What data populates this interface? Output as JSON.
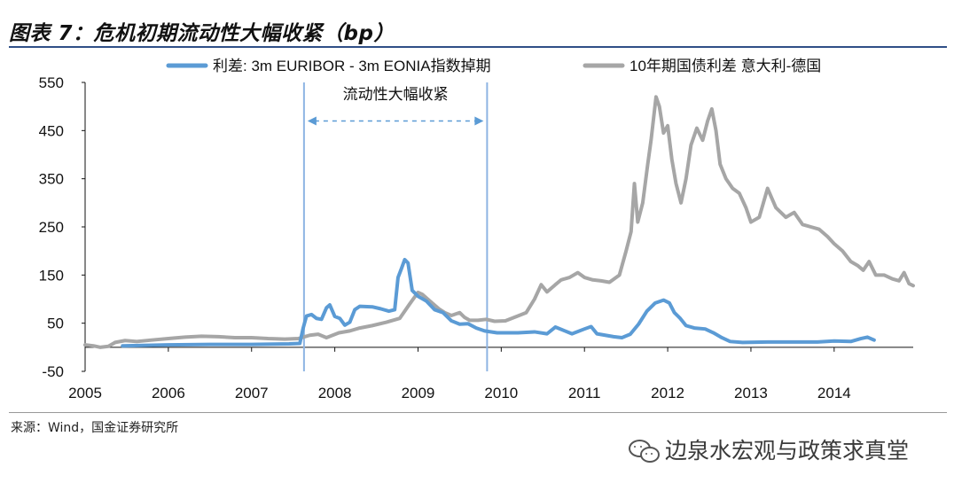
{
  "header": {
    "title": "图表 7：危机初期流动性大幅收紧（bp）"
  },
  "source": {
    "text": "来源：Wind，国金证券研究所"
  },
  "watermark": {
    "text": "边泉水宏观与政策求真堂",
    "icon": "wechat-icon"
  },
  "chart_data": {
    "type": "line",
    "title": "图表 7：危机初期流动性大幅收紧（bp）",
    "xlabel": "",
    "ylabel": "",
    "xlim": [
      2005.0,
      2014.95
    ],
    "ylim": [
      -50,
      550
    ],
    "x_ticks": [
      2005,
      2006,
      2007,
      2008,
      2009,
      2010,
      2011,
      2012,
      2013,
      2014
    ],
    "x_tick_labels": [
      "2005",
      "2006",
      "2007",
      "2008",
      "2009",
      "2010",
      "2011",
      "2012",
      "2013",
      "2014"
    ],
    "y_ticks": [
      -50,
      50,
      150,
      250,
      350,
      450,
      550
    ],
    "y_tick_labels": [
      "-50",
      "50",
      "150",
      "250",
      "350",
      "450",
      "550"
    ],
    "grid": false,
    "legend": "top",
    "series": [
      {
        "name": "利差: 3m EURIBOR - 3m EONIA指数掉期",
        "color": "#5b9bd5",
        "points": [
          [
            2005.45,
            3
          ],
          [
            2006.0,
            5
          ],
          [
            2006.5,
            6
          ],
          [
            2007.0,
            6
          ],
          [
            2007.45,
            7
          ],
          [
            2007.58,
            8
          ],
          [
            2007.62,
            40
          ],
          [
            2007.66,
            65
          ],
          [
            2007.72,
            68
          ],
          [
            2007.78,
            60
          ],
          [
            2007.84,
            58
          ],
          [
            2007.9,
            82
          ],
          [
            2007.94,
            88
          ],
          [
            2008.0,
            64
          ],
          [
            2008.06,
            60
          ],
          [
            2008.12,
            46
          ],
          [
            2008.18,
            52
          ],
          [
            2008.24,
            78
          ],
          [
            2008.3,
            85
          ],
          [
            2008.45,
            84
          ],
          [
            2008.55,
            80
          ],
          [
            2008.65,
            75
          ],
          [
            2008.72,
            78
          ],
          [
            2008.76,
            145
          ],
          [
            2008.8,
            163
          ],
          [
            2008.84,
            182
          ],
          [
            2008.88,
            175
          ],
          [
            2008.93,
            118
          ],
          [
            2009.0,
            106
          ],
          [
            2009.1,
            96
          ],
          [
            2009.2,
            78
          ],
          [
            2009.3,
            72
          ],
          [
            2009.4,
            55
          ],
          [
            2009.5,
            48
          ],
          [
            2009.6,
            49
          ],
          [
            2009.7,
            40
          ],
          [
            2009.8,
            34
          ],
          [
            2009.95,
            30
          ],
          [
            2010.2,
            30
          ],
          [
            2010.4,
            32
          ],
          [
            2010.55,
            28
          ],
          [
            2010.65,
            42
          ],
          [
            2010.75,
            35
          ],
          [
            2010.85,
            28
          ],
          [
            2011.0,
            38
          ],
          [
            2011.08,
            43
          ],
          [
            2011.15,
            28
          ],
          [
            2011.25,
            25
          ],
          [
            2011.35,
            22
          ],
          [
            2011.45,
            20
          ],
          [
            2011.55,
            27
          ],
          [
            2011.65,
            48
          ],
          [
            2011.75,
            75
          ],
          [
            2011.85,
            92
          ],
          [
            2011.95,
            98
          ],
          [
            2012.02,
            92
          ],
          [
            2012.08,
            72
          ],
          [
            2012.15,
            60
          ],
          [
            2012.22,
            45
          ],
          [
            2012.32,
            40
          ],
          [
            2012.45,
            38
          ],
          [
            2012.55,
            30
          ],
          [
            2012.65,
            20
          ],
          [
            2012.75,
            12
          ],
          [
            2012.9,
            10
          ],
          [
            2013.2,
            11
          ],
          [
            2013.5,
            11
          ],
          [
            2013.8,
            11
          ],
          [
            2014.0,
            13
          ],
          [
            2014.2,
            12
          ],
          [
            2014.32,
            18
          ],
          [
            2014.4,
            21
          ],
          [
            2014.48,
            15
          ]
        ]
      },
      {
        "name": "10年期国债利差 意大利-德国",
        "color": "#a6a6a6",
        "points": [
          [
            2005.0,
            5
          ],
          [
            2005.1,
            3
          ],
          [
            2005.18,
            0
          ],
          [
            2005.28,
            2
          ],
          [
            2005.36,
            10
          ],
          [
            2005.48,
            14
          ],
          [
            2005.62,
            12
          ],
          [
            2005.8,
            15
          ],
          [
            2006.0,
            18
          ],
          [
            2006.2,
            21
          ],
          [
            2006.4,
            23
          ],
          [
            2006.6,
            22
          ],
          [
            2006.8,
            20
          ],
          [
            2007.0,
            20
          ],
          [
            2007.2,
            18
          ],
          [
            2007.4,
            17
          ],
          [
            2007.56,
            18
          ],
          [
            2007.7,
            25
          ],
          [
            2007.8,
            27
          ],
          [
            2007.9,
            20
          ],
          [
            2008.05,
            30
          ],
          [
            2008.18,
            34
          ],
          [
            2008.3,
            40
          ],
          [
            2008.45,
            45
          ],
          [
            2008.62,
            52
          ],
          [
            2008.78,
            60
          ],
          [
            2008.9,
            90
          ],
          [
            2009.0,
            114
          ],
          [
            2009.05,
            110
          ],
          [
            2009.15,
            95
          ],
          [
            2009.25,
            80
          ],
          [
            2009.32,
            72
          ],
          [
            2009.4,
            66
          ],
          [
            2009.5,
            72
          ],
          [
            2009.56,
            62
          ],
          [
            2009.62,
            56
          ],
          [
            2009.72,
            56
          ],
          [
            2009.82,
            58
          ],
          [
            2009.92,
            54
          ],
          [
            2010.05,
            55
          ],
          [
            2010.2,
            65
          ],
          [
            2010.3,
            72
          ],
          [
            2010.4,
            100
          ],
          [
            2010.48,
            130
          ],
          [
            2010.55,
            115
          ],
          [
            2010.65,
            130
          ],
          [
            2010.72,
            140
          ],
          [
            2010.82,
            145
          ],
          [
            2010.92,
            155
          ],
          [
            2011.0,
            145
          ],
          [
            2011.1,
            140
          ],
          [
            2011.2,
            138
          ],
          [
            2011.3,
            135
          ],
          [
            2011.42,
            150
          ],
          [
            2011.5,
            200
          ],
          [
            2011.56,
            240
          ],
          [
            2011.6,
            340
          ],
          [
            2011.64,
            260
          ],
          [
            2011.7,
            300
          ],
          [
            2011.76,
            380
          ],
          [
            2011.8,
            430
          ],
          [
            2011.86,
            520
          ],
          [
            2011.9,
            500
          ],
          [
            2011.95,
            445
          ],
          [
            2012.0,
            460
          ],
          [
            2012.05,
            390
          ],
          [
            2012.1,
            340
          ],
          [
            2012.16,
            300
          ],
          [
            2012.22,
            350
          ],
          [
            2012.28,
            420
          ],
          [
            2012.35,
            455
          ],
          [
            2012.42,
            430
          ],
          [
            2012.48,
            470
          ],
          [
            2012.53,
            495
          ],
          [
            2012.58,
            450
          ],
          [
            2012.63,
            380
          ],
          [
            2012.7,
            350
          ],
          [
            2012.78,
            330
          ],
          [
            2012.86,
            320
          ],
          [
            2012.94,
            290
          ],
          [
            2013.0,
            260
          ],
          [
            2013.1,
            270
          ],
          [
            2013.2,
            330
          ],
          [
            2013.3,
            290
          ],
          [
            2013.42,
            270
          ],
          [
            2013.52,
            280
          ],
          [
            2013.62,
            255
          ],
          [
            2013.72,
            250
          ],
          [
            2013.82,
            245
          ],
          [
            2013.92,
            230
          ],
          [
            2014.0,
            215
          ],
          [
            2014.1,
            200
          ],
          [
            2014.2,
            178
          ],
          [
            2014.28,
            170
          ],
          [
            2014.35,
            160
          ],
          [
            2014.42,
            178
          ],
          [
            2014.5,
            150
          ],
          [
            2014.6,
            150
          ],
          [
            2014.7,
            142
          ],
          [
            2014.78,
            138
          ],
          [
            2014.84,
            155
          ],
          [
            2014.9,
            132
          ],
          [
            2014.95,
            128
          ]
        ]
      }
    ],
    "annotation": {
      "text": "流动性大幅收紧",
      "start_x": 2007.63,
      "end_x": 2009.83,
      "arrow_y": 470
    }
  }
}
